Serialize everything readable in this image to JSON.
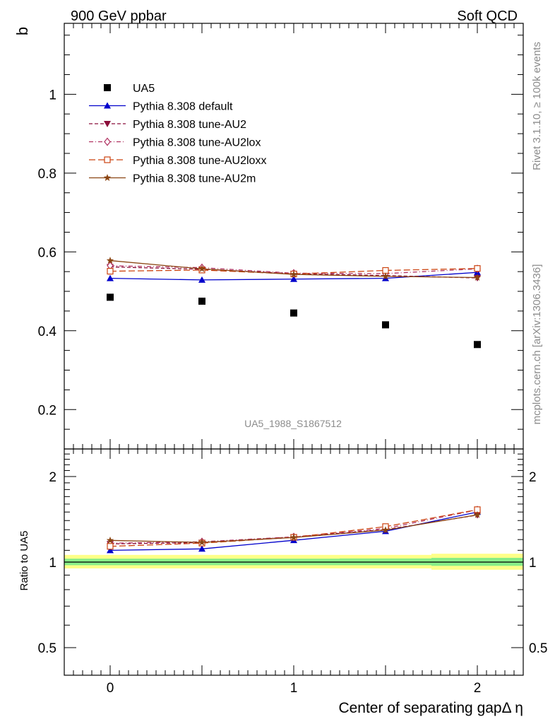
{
  "header": {
    "left_title": "900 GeV ppbar",
    "right_title": "Soft QCD"
  },
  "side_labels": {
    "rivet": "Rivet 3.1.10, ≥ 100k events",
    "mcplots": "mcplots.cern.ch [arXiv:1306.3436]"
  },
  "watermark": "UA5_1988_S1867512",
  "chart_data": [
    {
      "type": "line",
      "ylabel": "b",
      "xlim": [
        -0.25,
        2.25
      ],
      "ylim": [
        0.1,
        1.18
      ],
      "yticks": [
        0.2,
        0.4,
        0.6,
        0.8,
        1.0
      ],
      "ytick_labels": [
        "0.2",
        "0.4",
        "0.6",
        "0.8",
        "1"
      ],
      "legend_position": "top-left",
      "x": [
        0,
        0.5,
        1,
        1.5,
        2
      ],
      "series": [
        {
          "name": "UA5",
          "marker": "square",
          "color": "#000000",
          "line": "none",
          "values": [
            0.485,
            0.475,
            0.445,
            0.415,
            0.365
          ]
        },
        {
          "name": "Pythia 8.308 default",
          "marker": "triangle-up",
          "color": "#0000cc",
          "line": "solid",
          "values": [
            0.533,
            0.529,
            0.531,
            0.533,
            0.548
          ]
        },
        {
          "name": "Pythia 8.308 tune-AU2",
          "marker": "triangle-down",
          "color": "#8b0d3a",
          "line": "dashed",
          "values": [
            0.562,
            0.556,
            0.545,
            0.54,
            0.534
          ]
        },
        {
          "name": "Pythia 8.308 tune-AU2lox",
          "marker": "diamond-open",
          "color": "#b03060",
          "line": "dashdot",
          "values": [
            0.565,
            0.56,
            0.546,
            0.545,
            0.557
          ]
        },
        {
          "name": "Pythia 8.308 tune-AU2loxx",
          "marker": "square-open",
          "color": "#cc4411",
          "line": "longdash",
          "values": [
            0.551,
            0.554,
            0.544,
            0.553,
            0.558
          ]
        },
        {
          "name": "Pythia 8.308 tune-AU2m",
          "marker": "star",
          "color": "#8b4513",
          "line": "solid",
          "values": [
            0.578,
            0.557,
            0.543,
            0.538,
            0.535
          ]
        }
      ]
    },
    {
      "type": "line",
      "ylabel": "Ratio to UA5",
      "xlabel": "Center of separating gapΔ η",
      "xlim": [
        -0.25,
        2.25
      ],
      "ylim": [
        0.4,
        2.5
      ],
      "yscale": "log",
      "yticks": [
        0.5,
        1,
        2
      ],
      "ytick_labels": [
        "0.5",
        "1",
        "2"
      ],
      "xticks": [
        0,
        1,
        2
      ],
      "xtick_labels": [
        "0",
        "1",
        "2"
      ],
      "x": [
        0,
        0.5,
        1,
        1.5,
        2
      ],
      "bands": {
        "yellow_color": "#ffff88",
        "green_color": "#88ee88",
        "edges": [
          -0.25,
          0.25,
          0.75,
          1.25,
          1.75,
          2.25
        ],
        "yellow": [
          [
            0.95,
            1.06
          ],
          [
            0.95,
            1.06
          ],
          [
            0.95,
            1.06
          ],
          [
            0.95,
            1.06
          ],
          [
            0.94,
            1.07
          ]
        ],
        "green": [
          [
            0.975,
            1.028
          ],
          [
            0.975,
            1.028
          ],
          [
            0.975,
            1.028
          ],
          [
            0.975,
            1.03
          ],
          [
            0.97,
            1.035
          ]
        ]
      },
      "series": [
        {
          "name": "Pythia 8.308 default",
          "marker": "triangle-up",
          "color": "#0000cc",
          "line": "solid",
          "values": [
            1.1,
            1.113,
            1.193,
            1.284,
            1.5
          ]
        },
        {
          "name": "Pythia 8.308 tune-AU2",
          "marker": "triangle-down",
          "color": "#8b0d3a",
          "line": "dashed",
          "values": [
            1.159,
            1.171,
            1.225,
            1.301,
            1.463
          ]
        },
        {
          "name": "Pythia 8.308 tune-AU2lox",
          "marker": "diamond-open",
          "color": "#b03060",
          "line": "dashdot",
          "values": [
            1.165,
            1.179,
            1.227,
            1.313,
            1.526
          ]
        },
        {
          "name": "Pythia 8.308 tune-AU2loxx",
          "marker": "square-open",
          "color": "#cc4411",
          "line": "longdash",
          "values": [
            1.136,
            1.166,
            1.222,
            1.333,
            1.529
          ]
        },
        {
          "name": "Pythia 8.308 tune-AU2m",
          "marker": "star",
          "color": "#8b4513",
          "line": "solid",
          "values": [
            1.192,
            1.173,
            1.22,
            1.296,
            1.466
          ]
        }
      ]
    }
  ]
}
